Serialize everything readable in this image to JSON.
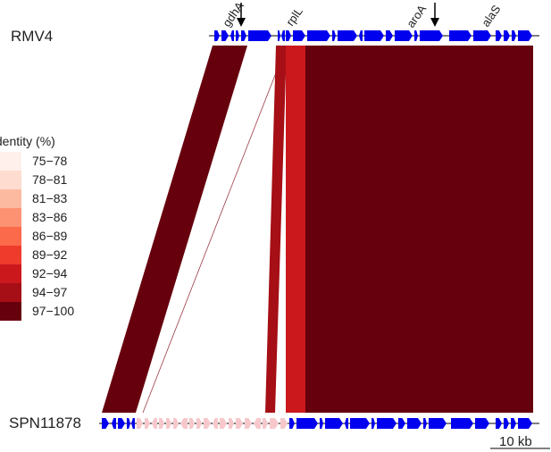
{
  "sequences": {
    "top": {
      "name": "RMV4"
    },
    "bottom": {
      "name": "SPN11878"
    }
  },
  "gene_labels": [
    {
      "name": "gdhA",
      "marker": "arrow"
    },
    {
      "name": "rplL",
      "marker": "none"
    },
    {
      "name": "aroA",
      "marker": "arrow"
    },
    {
      "name": "alaS",
      "marker": "none"
    }
  ],
  "legend": {
    "title": "Identity (%)",
    "bins": [
      {
        "label": "75−78",
        "color": "#fff0ec"
      },
      {
        "label": "78−81",
        "color": "#fedccf"
      },
      {
        "label": "81−83",
        "color": "#fcbba1"
      },
      {
        "label": "83−86",
        "color": "#fc9272"
      },
      {
        "label": "86−89",
        "color": "#fb6a4a"
      },
      {
        "label": "89−92",
        "color": "#ef3b2c"
      },
      {
        "label": "92−94",
        "color": "#cb181d"
      },
      {
        "label": "94−97",
        "color": "#a50f15"
      },
      {
        "label": "97−100",
        "color": "#67000d"
      }
    ]
  },
  "scale_bar": {
    "label": "10 kb"
  },
  "colors": {
    "gene": "#0000ee",
    "unmatched_gene": "#f6c8cb",
    "match_high": "#67000d",
    "match_92_94": "#cb181d",
    "match_94_97": "#a50f15"
  }
}
